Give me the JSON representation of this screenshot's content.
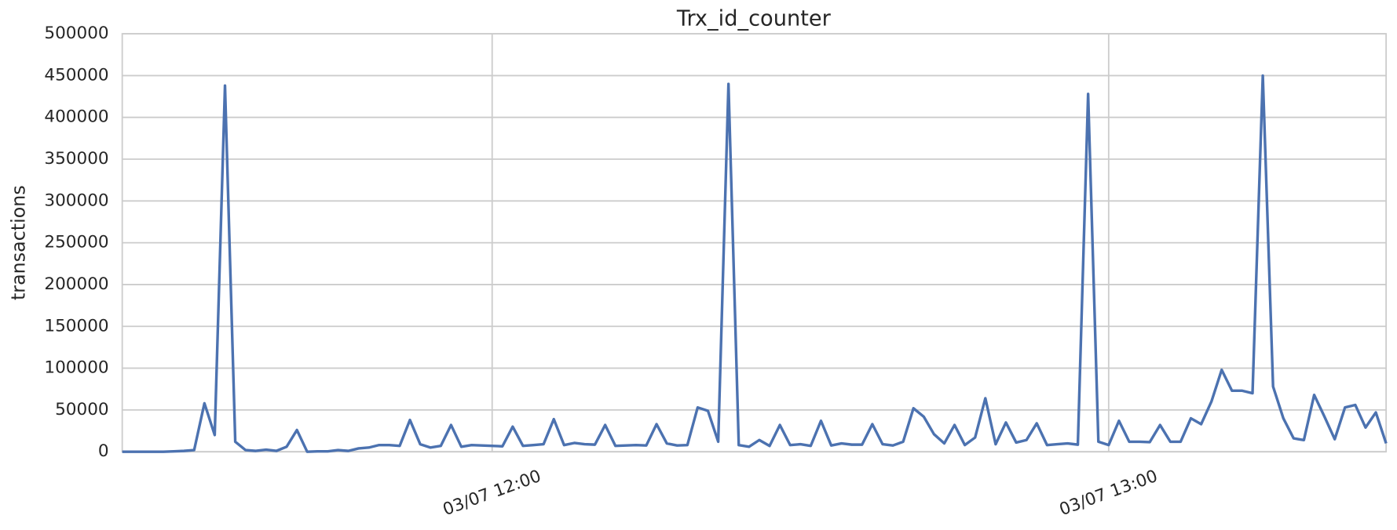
{
  "chart_data": {
    "type": "line",
    "title": "Trx_id_counter",
    "ylabel": "transactions",
    "x": [
      "03/07 11:24",
      "03/07 11:25",
      "03/07 11:26",
      "03/07 11:27",
      "03/07 11:28",
      "03/07 11:29",
      "03/07 11:30",
      "03/07 11:31",
      "03/07 11:32",
      "03/07 11:33",
      "03/07 11:34",
      "03/07 11:35",
      "03/07 11:36",
      "03/07 11:37",
      "03/07 11:38",
      "03/07 11:39",
      "03/07 11:40",
      "03/07 11:41",
      "03/07 11:42",
      "03/07 11:43",
      "03/07 11:44",
      "03/07 11:45",
      "03/07 11:46",
      "03/07 11:47",
      "03/07 11:48",
      "03/07 11:49",
      "03/07 11:50",
      "03/07 11:51",
      "03/07 11:52",
      "03/07 11:53",
      "03/07 11:54",
      "03/07 11:55",
      "03/07 11:56",
      "03/07 11:57",
      "03/07 11:58",
      "03/07 11:59",
      "03/07 12:00",
      "03/07 12:01",
      "03/07 12:02",
      "03/07 12:03",
      "03/07 12:04",
      "03/07 12:05",
      "03/07 12:06",
      "03/07 12:07",
      "03/07 12:08",
      "03/07 12:09",
      "03/07 12:10",
      "03/07 12:11",
      "03/07 12:12",
      "03/07 12:13",
      "03/07 12:14",
      "03/07 12:15",
      "03/07 12:16",
      "03/07 12:17",
      "03/07 12:18",
      "03/07 12:19",
      "03/07 12:20",
      "03/07 12:21",
      "03/07 12:22",
      "03/07 12:23",
      "03/07 12:24",
      "03/07 12:25",
      "03/07 12:26",
      "03/07 12:27",
      "03/07 12:28",
      "03/07 12:29",
      "03/07 12:30",
      "03/07 12:31",
      "03/07 12:32",
      "03/07 12:33",
      "03/07 12:34",
      "03/07 12:35",
      "03/07 12:36",
      "03/07 12:37",
      "03/07 12:38",
      "03/07 12:39",
      "03/07 12:40",
      "03/07 12:41",
      "03/07 12:42",
      "03/07 12:43",
      "03/07 12:44",
      "03/07 12:45",
      "03/07 12:46",
      "03/07 12:47",
      "03/07 12:48",
      "03/07 12:49",
      "03/07 12:50",
      "03/07 12:51",
      "03/07 12:52",
      "03/07 12:53",
      "03/07 12:54",
      "03/07 12:55",
      "03/07 12:56",
      "03/07 12:57",
      "03/07 12:58",
      "03/07 12:59",
      "03/07 13:00",
      "03/07 13:01",
      "03/07 13:02",
      "03/07 13:03",
      "03/07 13:04",
      "03/07 13:05",
      "03/07 13:06",
      "03/07 13:07",
      "03/07 13:08",
      "03/07 13:09",
      "03/07 13:10",
      "03/07 13:11",
      "03/07 13:12",
      "03/07 13:13",
      "03/07 13:14",
      "03/07 13:15",
      "03/07 13:16",
      "03/07 13:17",
      "03/07 13:18",
      "03/07 13:19",
      "03/07 13:20",
      "03/07 13:21",
      "03/07 13:22",
      "03/07 13:23",
      "03/07 13:24",
      "03/07 13:25",
      "03/07 13:26",
      "03/07 13:27"
    ],
    "series": [
      {
        "color": "#4c72b0",
        "values": [
          0,
          0,
          0,
          0,
          0,
          500,
          1000,
          2000,
          58000,
          20000,
          438000,
          12000,
          2000,
          1000,
          2500,
          1000,
          6000,
          26000,
          0,
          500,
          500,
          2000,
          1000,
          4000,
          5000,
          8000,
          8000,
          7000,
          38000,
          9000,
          5000,
          7000,
          32000,
          6000,
          8000,
          7500,
          7000,
          6500,
          30000,
          7000,
          8000,
          9000,
          39000,
          8000,
          10500,
          9000,
          8500,
          32000,
          7000,
          7500,
          8000,
          7500,
          33000,
          10000,
          7500,
          8000,
          53000,
          49000,
          12000,
          440000,
          8000,
          6000,
          14000,
          7000,
          32000,
          8000,
          9000,
          7000,
          37000,
          7500,
          10000,
          8500,
          8500,
          33000,
          9000,
          7500,
          12000,
          52000,
          42000,
          21000,
          10000,
          32000,
          8000,
          17000,
          64000,
          9000,
          35000,
          11000,
          14000,
          34000,
          8000,
          9000,
          10000,
          8500,
          428000,
          12000,
          8000,
          37000,
          12000,
          12000,
          11500,
          32000,
          12000,
          12000,
          40000,
          33000,
          60000,
          98000,
          73000,
          73000,
          70000,
          450000,
          78000,
          40000,
          16000,
          14000,
          68000,
          42000,
          15000,
          53000,
          56000,
          29000,
          47000,
          10000
        ]
      }
    ],
    "xlim": [
      "03/07 11:24",
      "03/07 13:27"
    ],
    "xticks": [
      "03/07 12:00",
      "03/07 13:00"
    ],
    "ylim": [
      0,
      500000
    ],
    "yticks": [
      0,
      50000,
      100000,
      150000,
      200000,
      250000,
      300000,
      350000,
      400000,
      450000,
      500000
    ],
    "grid": true
  }
}
